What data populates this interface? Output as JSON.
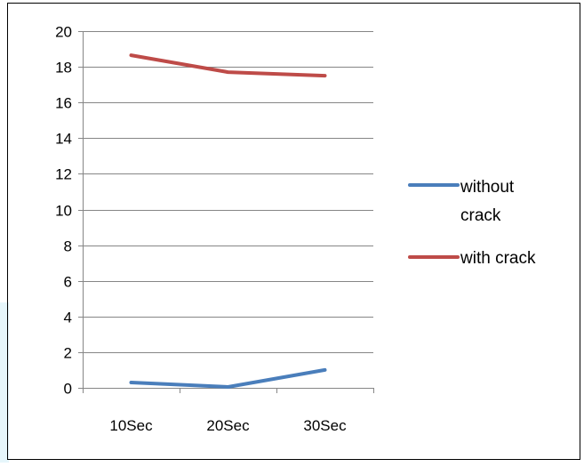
{
  "chart_data": {
    "type": "line",
    "title": "",
    "xlabel": "",
    "ylabel": "",
    "categories": [
      "10Sec",
      "20Sec",
      "30Sec"
    ],
    "ylim": [
      0,
      20
    ],
    "y_ticks": [
      0,
      2,
      4,
      6,
      8,
      10,
      12,
      14,
      16,
      18,
      20
    ],
    "grid": true,
    "legend_position": "right",
    "series": [
      {
        "name": "without crack",
        "values": [
          0.3,
          0.05,
          1.0
        ],
        "color": "#4a7ebb"
      },
      {
        "name": "with crack",
        "values": [
          18.65,
          17.7,
          17.5
        ],
        "color": "#be4b48"
      }
    ]
  }
}
